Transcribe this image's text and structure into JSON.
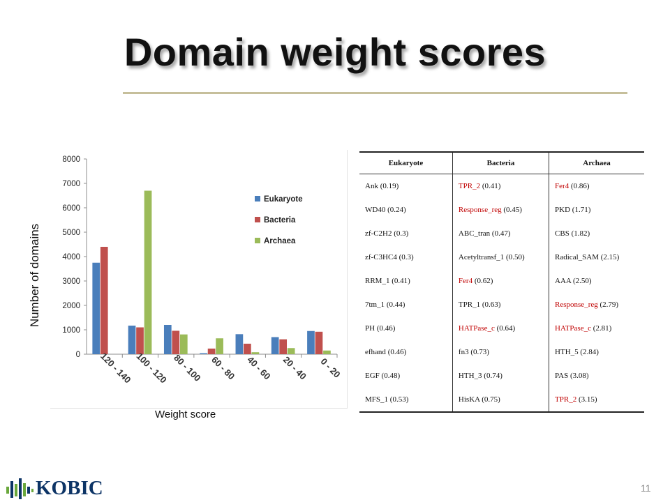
{
  "slide": {
    "title": "Domain weight scores",
    "page_number": "11",
    "logo_text": "KOBIC",
    "colors": {
      "rule": "#c6bf9b",
      "highlight_text": "#c00000",
      "logo_blue": "#0d3466",
      "logo_green": "#6aa83c"
    }
  },
  "chart_data": {
    "type": "bar",
    "xlabel": "Weight score",
    "ylabel": "Number of domains",
    "categories": [
      "120 - 140",
      "100 - 120",
      "80 - 100",
      "60 - 80",
      "40 - 60",
      "20 - 40",
      "0 - 20"
    ],
    "series": [
      {
        "name": "Eukaryote",
        "color": "#4a7ebb",
        "values": [
          3750,
          1170,
          1200,
          40,
          820,
          700,
          950
        ]
      },
      {
        "name": "Bacteria",
        "color": "#c0504d",
        "values": [
          4400,
          1100,
          960,
          230,
          430,
          610,
          920
        ]
      },
      {
        "name": "Archaea",
        "color": "#9bbb59",
        "values": [
          0,
          6700,
          810,
          650,
          80,
          250,
          150
        ]
      }
    ],
    "ylim": [
      0,
      8000
    ],
    "yticks": [
      0,
      1000,
      2000,
      3000,
      4000,
      5000,
      6000,
      7000,
      8000
    ],
    "grid": false,
    "legend": "right"
  },
  "table": {
    "headers": [
      "Eukaryote",
      "Bacteria",
      "Archaea"
    ],
    "rows": [
      [
        {
          "name": "Ank",
          "score": "(0.19)",
          "hl": false
        },
        {
          "name": "TPR_2",
          "score": "(0.41)",
          "hl": true
        },
        {
          "name": "Fer4",
          "score": "(0.86)",
          "hl": true
        }
      ],
      [
        {
          "name": "WD40",
          "score": "(0.24)",
          "hl": false
        },
        {
          "name": "Response_reg",
          "score": "(0.45)",
          "hl": true
        },
        {
          "name": "PKD",
          "score": "(1.71)",
          "hl": false
        }
      ],
      [
        {
          "name": "zf-C2H2",
          "score": "(0.3)",
          "hl": false
        },
        {
          "name": "ABC_tran",
          "score": "(0.47)",
          "hl": false
        },
        {
          "name": "CBS",
          "score": "(1.82)",
          "hl": false
        }
      ],
      [
        {
          "name": "zf-C3HC4",
          "score": "(0.3)",
          "hl": false
        },
        {
          "name": "Acetyltransf_1",
          "score": "(0.50)",
          "hl": false
        },
        {
          "name": "Radical_SAM",
          "score": "(2.15)",
          "hl": false
        }
      ],
      [
        {
          "name": "RRM_1",
          "score": "(0.41)",
          "hl": false
        },
        {
          "name": "Fer4",
          "score": "(0.62)",
          "hl": true
        },
        {
          "name": "AAA",
          "score": "(2.50)",
          "hl": false
        }
      ],
      [
        {
          "name": "7tm_1",
          "score": "(0.44)",
          "hl": false
        },
        {
          "name": "TPR_1",
          "score": "(0.63)",
          "hl": false
        },
        {
          "name": "Response_reg",
          "score": "(2.79)",
          "hl": true
        }
      ],
      [
        {
          "name": "PH",
          "score": "(0.46)",
          "hl": false
        },
        {
          "name": "HATPase_c",
          "score": "(0.64)",
          "hl": true
        },
        {
          "name": "HATPase_c",
          "score": "(2.81)",
          "hl": true
        }
      ],
      [
        {
          "name": "efhand",
          "score": "(0.46)",
          "hl": false
        },
        {
          "name": "fn3",
          "score": "(0.73)",
          "hl": false
        },
        {
          "name": "HTH_5",
          "score": "(2.84)",
          "hl": false
        }
      ],
      [
        {
          "name": "EGF",
          "score": "(0.48)",
          "hl": false
        },
        {
          "name": "HTH_3",
          "score": "(0.74)",
          "hl": false
        },
        {
          "name": "PAS",
          "score": "(3.08)",
          "hl": false
        }
      ],
      [
        {
          "name": "MFS_1",
          "score": "(0.53)",
          "hl": false
        },
        {
          "name": "HisKA",
          "score": "(0.75)",
          "hl": false
        },
        {
          "name": "TPR_2",
          "score": "(3.15)",
          "hl": true
        }
      ]
    ]
  }
}
